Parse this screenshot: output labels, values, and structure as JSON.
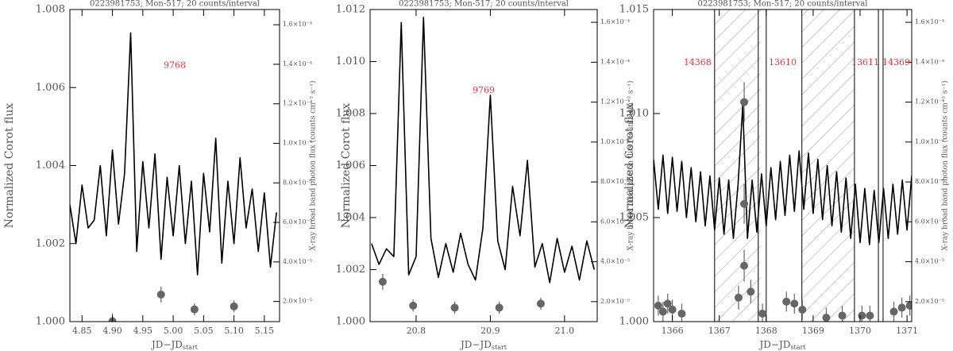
{
  "chart_data": [
    {
      "type": "line",
      "title": "0223981753; Mon-517; 20 counts/interval",
      "xlabel": [
        "JD−JD",
        "start"
      ],
      "ylabel": "Normalized Corot flux",
      "y2label": "X-ray broad band photon flux (counts cm⁻² s⁻¹)",
      "annotations": [
        "9768"
      ],
      "annotation_color": "#e8353b",
      "xlim": [
        4.83,
        5.175
      ],
      "xticks": [
        4.85,
        {
          "value": 4.9,
          "label": "4.90"
        },
        4.95,
        {
          "value": 5.0,
          "label": "5.00"
        },
        5.05,
        {
          "value": 5.1,
          "label": "5.10"
        },
        5.15
      ],
      "ylim": [
        1.0,
        1.008
      ],
      "yticks": [
        {
          "value": 1.0,
          "label": "1.000"
        },
        {
          "value": 1.002,
          "label": "1.002"
        },
        {
          "value": 1.004,
          "label": "1.004"
        },
        {
          "value": 1.006,
          "label": "1.006"
        },
        {
          "value": 1.008,
          "label": "1.008"
        }
      ],
      "y2lim": [
        9.8e-06,
        0.0001677
      ],
      "y2ticks": [
        {
          "value": 2e-05,
          "label": "2.0×10⁻⁵"
        },
        {
          "value": 4e-05,
          "label": "4.0×10⁻⁵"
        },
        {
          "value": 6e-05,
          "label": "6.0×10⁻⁵"
        },
        {
          "value": 8e-05,
          "label": "8.0×10⁻⁵"
        },
        {
          "value": 0.0001,
          "label": "1.0×10⁻⁴"
        },
        {
          "value": 0.00012,
          "label": "1.2×10⁻⁴"
        },
        {
          "value": 0.00014,
          "label": "1.4×10⁻⁴"
        },
        {
          "value": 0.00016,
          "label": "1.6×10⁻⁴"
        }
      ],
      "series": [
        {
          "type": "line",
          "axis": "y",
          "color": "#000000",
          "x": [
            4.83,
            4.84,
            4.85,
            4.86,
            4.87,
            4.88,
            4.89,
            4.9,
            4.91,
            4.92,
            4.93,
            4.94,
            4.95,
            4.96,
            4.97,
            4.98,
            4.99,
            5.0,
            5.01,
            5.02,
            5.03,
            5.04,
            5.05,
            5.06,
            5.07,
            5.08,
            5.09,
            5.1,
            5.11,
            5.12,
            5.13,
            5.14,
            5.15,
            5.16,
            5.17
          ],
          "values": [
            1.003,
            1.002,
            1.0035,
            1.0024,
            1.0026,
            1.004,
            1.0022,
            1.0044,
            1.0025,
            1.0038,
            1.0074,
            1.0018,
            1.0041,
            1.0024,
            1.0043,
            1.0016,
            1.0037,
            1.0022,
            1.004,
            1.002,
            1.0036,
            1.0012,
            1.0038,
            1.0023,
            1.0047,
            1.0015,
            1.0036,
            1.002,
            1.0042,
            1.0024,
            1.0034,
            1.0018,
            1.0033,
            1.0014,
            1.0028
          ]
        },
        {
          "type": "scatter",
          "axis": "y2",
          "color": "#666666",
          "x": [
            4.9,
            4.98,
            5.035,
            5.1
          ],
          "values": [
            1e-05,
            2.35e-05,
            1.6e-05,
            1.75e-05
          ],
          "errors": [
            4e-06,
            4e-06,
            3e-06,
            3e-06
          ]
        }
      ]
    },
    {
      "type": "line",
      "title": "0223981753; Mon-517; 20 counts/interval",
      "xlabel": [
        "JD−JD",
        "start"
      ],
      "ylabel": "Normalized Corot flux",
      "y2label": "X-ray broad band photon flux (counts cm⁻² s⁻¹)",
      "annotations": [
        "9769"
      ],
      "annotation_color": "#e8353b",
      "xlim": [
        20.738,
        21.044
      ],
      "xticks": [
        20.8,
        20.9,
        {
          "value": 21.0,
          "label": "21.0"
        }
      ],
      "ylim": [
        1.0,
        1.012
      ],
      "yticks": [
        {
          "value": 1.0,
          "label": "1.000"
        },
        {
          "value": 1.002,
          "label": "1.002"
        },
        {
          "value": 1.004,
          "label": "1.004"
        },
        {
          "value": 1.006,
          "label": "1.006"
        },
        {
          "value": 1.008,
          "label": "1.008"
        },
        {
          "value": 1.01,
          "label": "1.010"
        },
        {
          "value": 1.012,
          "label": "1.012"
        }
      ],
      "y2lim": [
        1e-05,
        0.0001664
      ],
      "y2ticks": [
        {
          "value": 2e-05,
          "label": "2.0×10⁻⁵"
        },
        {
          "value": 4e-05,
          "label": "4.0×10⁻⁵"
        },
        {
          "value": 6e-05,
          "label": "6.0×10⁻⁵"
        },
        {
          "value": 8e-05,
          "label": "8.0×10⁻⁵"
        },
        {
          "value": 0.0001,
          "label": "1.0×10⁻⁴"
        },
        {
          "value": 0.00012,
          "label": "1.2×10⁻⁴"
        },
        {
          "value": 0.00014,
          "label": "1.4×10⁻⁴"
        },
        {
          "value": 0.00016,
          "label": "1.6×10⁻⁴"
        }
      ],
      "series": [
        {
          "type": "line",
          "axis": "y",
          "color": "#000000",
          "x": [
            20.74,
            20.75,
            20.76,
            20.77,
            20.78,
            20.79,
            20.8,
            20.81,
            20.82,
            20.83,
            20.84,
            20.85,
            20.86,
            20.87,
            20.88,
            20.89,
            20.9,
            20.91,
            20.92,
            20.93,
            20.94,
            20.95,
            20.96,
            20.97,
            20.98,
            20.99,
            21.0,
            21.01,
            21.02,
            21.03,
            21.04
          ],
          "values": [
            1.003,
            1.0022,
            1.0028,
            1.0025,
            1.0115,
            1.0018,
            1.0025,
            1.0117,
            1.0032,
            1.0017,
            1.003,
            1.0019,
            1.0034,
            1.0022,
            1.0016,
            1.0036,
            1.0087,
            1.0031,
            1.002,
            1.0052,
            1.0033,
            1.0062,
            1.0021,
            1.003,
            1.0015,
            1.0032,
            1.0019,
            1.0029,
            1.0016,
            1.0031,
            1.002
          ]
        },
        {
          "type": "scatter",
          "axis": "y2",
          "color": "#666666",
          "x": [
            20.755,
            20.796,
            20.852,
            20.912,
            20.968
          ],
          "values": [
            3e-05,
            1.8e-05,
            1.7e-05,
            1.7e-05,
            1.9e-05
          ],
          "errors": [
            4e-06,
            3e-06,
            3e-06,
            3e-06,
            3e-06
          ]
        }
      ]
    },
    {
      "type": "line",
      "title": "0223981753; Mon-517; 20 counts/interval",
      "xlabel": [
        "JD−JD",
        "start"
      ],
      "ylabel": "Normalized Corot flux",
      "y2label": "X-ray broad band photon flux (counts cm⁻² s⁻¹)",
      "annotations": [
        "14368",
        "13610",
        "13611",
        "14369"
      ],
      "annotation_color": "#e8353b",
      "hatched_x": [
        [
          1366.9,
          1367.88
        ],
        [
          1368.76,
          1369.88
        ]
      ],
      "vlines": [
        1366.9,
        1367.83,
        1368.0,
        1368.76,
        1369.88,
        1370.39,
        1370.49
      ],
      "xlim": [
        1365.6,
        1371.1
      ],
      "xticks": [
        1366,
        1367,
        1368,
        1369,
        1370,
        1371
      ],
      "ylim": [
        1.0,
        1.015
      ],
      "yticks": [
        {
          "value": 1.0,
          "label": "1.000"
        },
        {
          "value": 1.005,
          "label": "1.005"
        },
        {
          "value": 1.01,
          "label": "1.010"
        },
        {
          "value": 1.015,
          "label": "1.015"
        }
      ],
      "y2lim": [
        1e-05,
        0.0001664
      ],
      "y2ticks": [
        {
          "value": 2e-05,
          "label": "2.0×10⁻⁵"
        },
        {
          "value": 4e-05,
          "label": "4.0×10⁻⁵"
        },
        {
          "value": 6e-05,
          "label": "6.0×10⁻⁵"
        },
        {
          "value": 8e-05,
          "label": "8.0×10⁻⁵"
        },
        {
          "value": 0.0001,
          "label": "1.0×10⁻⁴"
        },
        {
          "value": 0.00012,
          "label": "1.2×10⁻⁴"
        },
        {
          "value": 0.00014,
          "label": "1.4×10⁻⁴"
        },
        {
          "value": 0.00016,
          "label": "1.6×10⁻⁴"
        }
      ],
      "series": [
        {
          "type": "line",
          "axis": "y",
          "color": "#000000",
          "x": [
            1365.6,
            1365.7,
            1365.8,
            1365.9,
            1366.0,
            1366.1,
            1366.2,
            1366.3,
            1366.4,
            1366.5,
            1366.6,
            1366.7,
            1366.8,
            1366.9,
            1367.0,
            1367.1,
            1367.2,
            1367.3,
            1367.4,
            1367.5,
            1367.6,
            1367.7,
            1367.8,
            1367.9,
            1368.0,
            1368.1,
            1368.2,
            1368.3,
            1368.4,
            1368.5,
            1368.6,
            1368.7,
            1368.8,
            1368.9,
            1369.0,
            1369.1,
            1369.2,
            1369.3,
            1369.4,
            1369.5,
            1369.6,
            1369.7,
            1369.8,
            1369.9,
            1370.0,
            1370.1,
            1370.2,
            1370.3,
            1370.4,
            1370.5,
            1370.6,
            1370.7,
            1370.8,
            1370.9,
            1371.0,
            1371.1
          ],
          "values": [
            1.0078,
            1.0054,
            1.008,
            1.0052,
            1.0079,
            1.0053,
            1.0077,
            1.005,
            1.0074,
            1.0048,
            1.0072,
            1.0046,
            1.007,
            1.0044,
            1.0069,
            1.0042,
            1.0068,
            1.004,
            1.0066,
            1.0104,
            1.004,
            1.0068,
            1.0043,
            1.0071,
            1.0046,
            1.0074,
            1.0049,
            1.0077,
            1.0051,
            1.008,
            1.0053,
            1.0082,
            1.0054,
            1.0081,
            1.0052,
            1.0078,
            1.0049,
            1.0075,
            1.0046,
            1.0072,
            1.0043,
            1.0069,
            1.004,
            1.0066,
            1.0038,
            1.0064,
            1.0037,
            1.0063,
            1.0038,
            1.0064,
            1.004,
            1.0066,
            1.0042,
            1.0068,
            1.0044,
            1.007
          ]
        },
        {
          "type": "scatter",
          "axis": "y2",
          "color": "#666666",
          "x": [
            1365.7,
            1365.8,
            1365.9,
            1366.0,
            1366.2,
            1367.41,
            1367.53,
            1367.53,
            1367.53,
            1367.67,
            1367.92,
            1368.43,
            1368.6,
            1368.77,
            1369.28,
            1369.62,
            1370.04,
            1370.21,
            1370.72,
            1370.89,
            1371.06
          ],
          "values": [
            1.8e-05,
            1.5e-05,
            1.9e-05,
            1.6e-05,
            1.4e-05,
            2.2e-05,
            0.00012,
            6.9e-05,
            3.8e-05,
            2.5e-05,
            1.4e-05,
            2e-05,
            1.9e-05,
            1.6e-05,
            1.2e-05,
            1.3e-05,
            1.3e-05,
            1.3e-05,
            1.5e-05,
            1.7e-05,
            1.8e-05
          ],
          "errors": [
            5e-06,
            5e-06,
            5e-06,
            5e-06,
            5e-06,
            6e-06,
            1e-05,
            1e-05,
            8e-06,
            6e-06,
            5e-06,
            5e-06,
            5e-06,
            5e-06,
            5e-06,
            5e-06,
            5e-06,
            5e-06,
            5e-06,
            5e-06,
            5e-06
          ]
        }
      ]
    }
  ]
}
